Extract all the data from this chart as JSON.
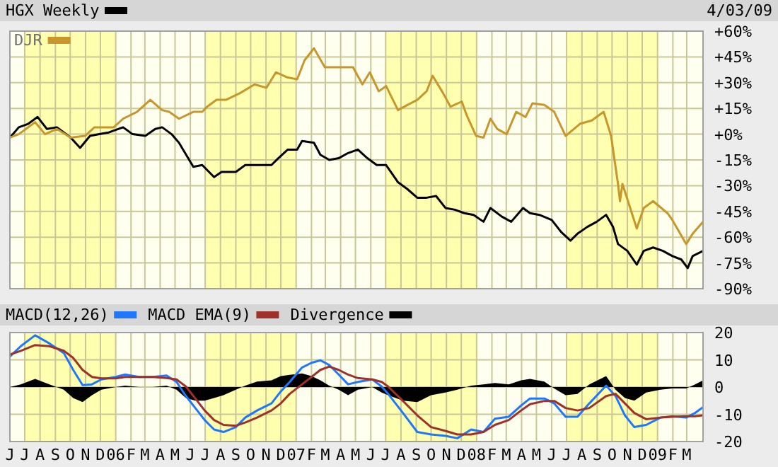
{
  "chart_data": [
    {
      "type": "line",
      "legend": "top left",
      "grid": true,
      "tick_labels": "y",
      "annotations": [
        "4/03/09"
      ],
      "xlim": [
        "2005-06-01",
        "2009-04-03"
      ],
      "xticks": [
        {
          "value": "2005-06-01",
          "label": null
        },
        {
          "value": "2005-07-01",
          "label": null
        },
        {
          "value": "2005-08-01",
          "label": null
        },
        {
          "value": "2005-09-01",
          "label": null
        },
        {
          "value": "2005-10-01",
          "label": null
        },
        {
          "value": "2005-11-01",
          "label": null
        },
        {
          "value": "2005-12-01",
          "label": null
        },
        {
          "value": "2006-01-01",
          "label": null
        },
        {
          "value": "2006-02-01",
          "label": null
        },
        {
          "value": "2006-03-01",
          "label": null
        },
        {
          "value": "2006-04-01",
          "label": null
        },
        {
          "value": "2006-05-01",
          "label": null
        },
        {
          "value": "2006-06-01",
          "label": null
        },
        {
          "value": "2006-07-01",
          "label": null
        },
        {
          "value": "2006-08-01",
          "label": null
        },
        {
          "value": "2006-09-01",
          "label": null
        },
        {
          "value": "2006-10-01",
          "label": null
        },
        {
          "value": "2006-11-01",
          "label": null
        },
        {
          "value": "2006-12-01",
          "label": null
        },
        {
          "value": "2007-01-01",
          "label": null
        },
        {
          "value": "2007-02-01",
          "label": null
        },
        {
          "value": "2007-03-01",
          "label": null
        },
        {
          "value": "2007-04-01",
          "label": null
        },
        {
          "value": "2007-05-01",
          "label": null
        },
        {
          "value": "2007-06-01",
          "label": null
        },
        {
          "value": "2007-07-01",
          "label": null
        },
        {
          "value": "2007-08-01",
          "label": null
        },
        {
          "value": "2007-09-01",
          "label": null
        },
        {
          "value": "2007-10-01",
          "label": null
        },
        {
          "value": "2007-11-01",
          "label": null
        },
        {
          "value": "2007-12-01",
          "label": null
        },
        {
          "value": "2008-01-01",
          "label": null
        },
        {
          "value": "2008-02-01",
          "label": null
        },
        {
          "value": "2008-03-01",
          "label": null
        },
        {
          "value": "2008-04-01",
          "label": null
        },
        {
          "value": "2008-05-01",
          "label": null
        },
        {
          "value": "2008-06-01",
          "label": null
        },
        {
          "value": "2008-07-01",
          "label": null
        },
        {
          "value": "2008-08-01",
          "label": null
        },
        {
          "value": "2008-09-01",
          "label": null
        },
        {
          "value": "2008-10-01",
          "label": null
        },
        {
          "value": "2008-11-01",
          "label": null
        },
        {
          "value": "2008-12-01",
          "label": null
        },
        {
          "value": "2009-01-01",
          "label": null
        },
        {
          "value": "2009-02-01",
          "label": null
        },
        {
          "value": "2009-03-01",
          "label": null
        }
      ],
      "ylim": [
        -90,
        60
      ],
      "yticks": [
        {
          "value": 60,
          "label": "+60%"
        },
        {
          "value": 45,
          "label": "+45%"
        },
        {
          "value": 30,
          "label": "+30%"
        },
        {
          "value": 15,
          "label": "+15%"
        },
        {
          "value": 0,
          "label": "+0%"
        },
        {
          "value": -15,
          "label": "-15%"
        },
        {
          "value": -30,
          "label": "-30%"
        },
        {
          "value": -45,
          "label": "-45%"
        },
        {
          "value": -60,
          "label": "-60%"
        },
        {
          "value": -75,
          "label": "-75%"
        },
        {
          "value": -90,
          "label": "-90%"
        }
      ],
      "bands": [
        {
          "axis": "x",
          "from": "2005-07-01",
          "to": "2006-01-01",
          "color": "#ffffb0"
        },
        {
          "axis": "x",
          "from": "2006-07-01",
          "to": "2007-01-01",
          "color": "#ffffb0"
        },
        {
          "axis": "x",
          "from": "2007-07-01",
          "to": "2008-01-01",
          "color": "#ffffb0"
        },
        {
          "axis": "x",
          "from": "2008-07-01",
          "to": "2009-01-01",
          "color": "#ffffb0"
        }
      ],
      "series": [
        {
          "name": "HGX Weekly",
          "color": "#000000",
          "x": [
            "2005-06-01",
            "2005-06-19",
            "2005-07-08",
            "2005-07-27",
            "2005-08-15",
            "2005-09-04",
            "2005-10-02",
            "2005-10-21",
            "2005-11-10",
            "2005-11-29",
            "2005-12-18",
            "2006-01-16",
            "2006-02-04",
            "2006-03-02",
            "2006-03-22",
            "2006-04-05",
            "2006-04-24",
            "2006-05-09",
            "2006-06-07",
            "2006-06-25",
            "2006-07-19",
            "2006-08-03",
            "2006-09-01",
            "2006-09-20",
            "2006-10-14",
            "2006-11-12",
            "2006-11-26",
            "2006-12-15",
            "2007-01-03",
            "2007-01-13",
            "2007-02-06",
            "2007-02-19",
            "2007-03-09",
            "2007-03-28",
            "2007-04-16",
            "2007-05-06",
            "2007-05-25",
            "2007-06-13",
            "2007-07-02",
            "2007-07-26",
            "2007-08-14",
            "2007-09-03",
            "2007-09-22",
            "2007-10-11",
            "2007-10-30",
            "2007-11-18",
            "2007-12-07",
            "2007-12-26",
            "2008-01-15",
            "2008-01-29",
            "2008-02-21",
            "2008-03-11",
            "2008-04-04",
            "2008-04-18",
            "2008-05-07",
            "2008-06-01",
            "2008-06-20",
            "2008-07-09",
            "2008-07-23",
            "2008-08-12",
            "2008-08-31",
            "2008-09-19",
            "2008-10-03",
            "2008-10-13",
            "2008-11-01",
            "2008-11-20",
            "2008-12-04",
            "2008-12-23",
            "2009-01-12",
            "2009-01-31",
            "2009-02-18",
            "2009-03-03",
            "2009-03-13",
            "2009-04-03"
          ],
          "values": [
            -2,
            4,
            6,
            10,
            3,
            4,
            -2,
            -8,
            -1,
            0,
            1,
            4,
            0,
            -1,
            3,
            4,
            0,
            -5,
            -19,
            -18,
            -25,
            -22,
            -22,
            -18,
            -18,
            -18,
            -14,
            -9,
            -9,
            -4,
            -5,
            -12,
            -15,
            -14,
            -11,
            -9,
            -14,
            -18,
            -18,
            -28,
            -32,
            -37,
            -37,
            -36,
            -43,
            -44,
            -46,
            -47,
            -51,
            -43,
            -48,
            -51,
            -43,
            -46,
            -47,
            -50,
            -57,
            -62,
            -58,
            -54,
            -51,
            -47,
            -54,
            -64,
            -68,
            -76,
            -68,
            -66,
            -68,
            -71,
            -73,
            -78,
            -71,
            -68
          ]
        },
        {
          "name": "DJR",
          "color": "#c8962a",
          "x": [
            "2005-06-01",
            "2005-06-19",
            "2005-07-08",
            "2005-07-22",
            "2005-08-11",
            "2005-09-04",
            "2005-10-02",
            "2005-10-31",
            "2005-11-19",
            "2005-12-28",
            "2006-01-16",
            "2006-02-13",
            "2006-03-12",
            "2006-04-05",
            "2006-04-19",
            "2006-05-09",
            "2006-06-07",
            "2006-06-25",
            "2006-07-05",
            "2006-07-24",
            "2006-08-12",
            "2006-09-10",
            "2006-10-09",
            "2006-11-02",
            "2006-11-21",
            "2006-12-15",
            "2007-01-03",
            "2007-01-18",
            "2007-02-06",
            "2007-02-28",
            "2007-03-28",
            "2007-04-26",
            "2007-05-15",
            "2007-05-30",
            "2007-06-17",
            "2007-07-02",
            "2007-07-26",
            "2007-08-14",
            "2007-09-03",
            "2007-09-22",
            "2007-10-04",
            "2007-10-25",
            "2007-11-09",
            "2007-12-02",
            "2007-12-12",
            "2007-12-31",
            "2008-01-15",
            "2008-01-29",
            "2008-02-12",
            "2008-03-02",
            "2008-03-21",
            "2008-04-09",
            "2008-04-23",
            "2008-05-17",
            "2008-06-06",
            "2008-06-29",
            "2008-07-28",
            "2008-08-21",
            "2008-09-14",
            "2008-09-29",
            "2008-10-13",
            "2008-10-17",
            "2008-10-22",
            "2008-11-20",
            "2008-12-04",
            "2008-12-23",
            "2009-01-21",
            "2009-01-31",
            "2009-02-14",
            "2009-02-28",
            "2009-03-13",
            "2009-04-03"
          ],
          "values": [
            -2,
            0,
            4,
            7,
            0,
            3,
            -2,
            -1,
            4,
            4,
            9,
            13,
            20,
            14,
            13,
            9,
            13,
            13,
            16,
            20,
            20,
            24,
            29,
            27,
            36,
            33,
            32,
            43,
            50,
            39,
            39,
            39,
            29,
            36,
            25,
            28,
            14,
            17,
            20,
            25,
            34,
            24,
            16,
            19,
            11,
            -1,
            -2,
            9,
            3,
            0,
            13,
            10,
            18,
            17,
            13,
            -1,
            6,
            8,
            13,
            -1,
            -29,
            -39,
            -29,
            -55,
            -43,
            -39,
            -46,
            -50,
            -57,
            -64,
            -58,
            -51
          ]
        }
      ]
    },
    {
      "type": "line",
      "legend": "top",
      "grid": true,
      "xlim": [
        "2005-06-01",
        "2009-04-03"
      ],
      "xticks": [
        {
          "value": "2005-06-01",
          "label": "J"
        },
        {
          "value": "2005-07-01",
          "label": "J"
        },
        {
          "value": "2005-08-01",
          "label": "A"
        },
        {
          "value": "2005-09-01",
          "label": "S"
        },
        {
          "value": "2005-10-01",
          "label": "O"
        },
        {
          "value": "2005-11-01",
          "label": "N"
        },
        {
          "value": "2005-12-01",
          "label": "D"
        },
        {
          "value": "2006-01-01",
          "label": "06"
        },
        {
          "value": "2006-02-01",
          "label": "F"
        },
        {
          "value": "2006-03-01",
          "label": "M"
        },
        {
          "value": "2006-04-01",
          "label": "A"
        },
        {
          "value": "2006-05-01",
          "label": "M"
        },
        {
          "value": "2006-06-01",
          "label": "J"
        },
        {
          "value": "2006-07-01",
          "label": "J"
        },
        {
          "value": "2006-08-01",
          "label": "A"
        },
        {
          "value": "2006-09-01",
          "label": "S"
        },
        {
          "value": "2006-10-01",
          "label": "O"
        },
        {
          "value": "2006-11-01",
          "label": "N"
        },
        {
          "value": "2006-12-01",
          "label": "D"
        },
        {
          "value": "2007-01-01",
          "label": "07"
        },
        {
          "value": "2007-02-01",
          "label": "F"
        },
        {
          "value": "2007-03-01",
          "label": "M"
        },
        {
          "value": "2007-04-01",
          "label": "A"
        },
        {
          "value": "2007-05-01",
          "label": "M"
        },
        {
          "value": "2007-06-01",
          "label": "J"
        },
        {
          "value": "2007-07-01",
          "label": "J"
        },
        {
          "value": "2007-08-01",
          "label": "A"
        },
        {
          "value": "2007-09-01",
          "label": "S"
        },
        {
          "value": "2007-10-01",
          "label": "O"
        },
        {
          "value": "2007-11-01",
          "label": "N"
        },
        {
          "value": "2007-12-01",
          "label": "D"
        },
        {
          "value": "2008-01-01",
          "label": "08"
        },
        {
          "value": "2008-02-01",
          "label": "F"
        },
        {
          "value": "2008-03-01",
          "label": "M"
        },
        {
          "value": "2008-04-01",
          "label": "A"
        },
        {
          "value": "2008-05-01",
          "label": "M"
        },
        {
          "value": "2008-06-01",
          "label": "J"
        },
        {
          "value": "2008-07-01",
          "label": "J"
        },
        {
          "value": "2008-08-01",
          "label": "A"
        },
        {
          "value": "2008-09-01",
          "label": "S"
        },
        {
          "value": "2008-10-01",
          "label": "O"
        },
        {
          "value": "2008-11-01",
          "label": "N"
        },
        {
          "value": "2008-12-01",
          "label": "D"
        },
        {
          "value": "2009-01-01",
          "label": "09"
        },
        {
          "value": "2009-02-01",
          "label": "F"
        },
        {
          "value": "2009-03-01",
          "label": "M"
        }
      ],
      "ylim": [
        -20,
        20
      ],
      "yticks": [
        20,
        10,
        0,
        -10,
        -20
      ],
      "bands": [
        {
          "axis": "x",
          "from": "2005-07-01",
          "to": "2006-01-01",
          "color": "#ffffb0"
        },
        {
          "axis": "x",
          "from": "2006-07-01",
          "to": "2007-01-01",
          "color": "#ffffb0"
        },
        {
          "axis": "x",
          "from": "2007-07-01",
          "to": "2008-01-01",
          "color": "#ffffb0"
        },
        {
          "axis": "x",
          "from": "2008-07-01",
          "to": "2009-01-01",
          "color": "#ffffb0"
        }
      ],
      "x": [
        "2005-06-01",
        "2005-06-23",
        "2005-07-22",
        "2005-08-20",
        "2005-09-18",
        "2005-10-07",
        "2005-10-26",
        "2005-11-14",
        "2005-12-03",
        "2006-01-01",
        "2006-01-20",
        "2006-02-17",
        "2006-03-17",
        "2006-04-14",
        "2006-05-04",
        "2006-05-23",
        "2006-06-11",
        "2006-06-30",
        "2006-07-19",
        "2006-08-07",
        "2006-09-01",
        "2006-09-20",
        "2006-10-14",
        "2006-11-12",
        "2006-12-01",
        "2006-12-19",
        "2007-01-13",
        "2007-02-01",
        "2007-02-19",
        "2007-03-09",
        "2007-03-28",
        "2007-04-16",
        "2007-05-06",
        "2007-06-04",
        "2007-06-23",
        "2007-07-06",
        "2007-08-05",
        "2007-09-03",
        "2007-10-01",
        "2007-10-30",
        "2007-11-23",
        "2007-12-21",
        "2008-01-15",
        "2008-02-07",
        "2008-03-06",
        "2008-03-31",
        "2008-04-18",
        "2008-05-17",
        "2008-06-06",
        "2008-06-29",
        "2008-07-23",
        "2008-08-16",
        "2008-09-19",
        "2008-10-08",
        "2008-10-27",
        "2008-11-15",
        "2008-12-09",
        "2009-01-07",
        "2009-01-31",
        "2009-02-28",
        "2009-03-18",
        "2009-04-03"
      ],
      "series": [
        {
          "name": "MACD(12,26)",
          "color": "#1e78ff",
          "values": [
            11.2,
            15,
            19,
            16,
            12.5,
            6.3,
            0.7,
            1,
            2.8,
            3.7,
            4.6,
            3.7,
            3.7,
            4.2,
            1.9,
            -3.3,
            -7.7,
            -12.1,
            -15.6,
            -16.5,
            -14.7,
            -11.2,
            -8.6,
            -6,
            -1.6,
            1.9,
            7.2,
            8.9,
            9.8,
            8.1,
            4.6,
            1,
            1.9,
            2.8,
            0.2,
            -2.5,
            -9.5,
            -16.5,
            -17.4,
            -17.9,
            -18.8,
            -15.6,
            -16.5,
            -11.6,
            -10.9,
            -6.8,
            -4.2,
            -4.2,
            -6,
            -10.9,
            -10.9,
            -6,
            0.5,
            -3.3,
            -10.4,
            -14.7,
            -13.9,
            -11.2,
            -10.7,
            -11.2,
            -9.5,
            -7.4
          ]
        },
        {
          "name": "MACD EMA(9)",
          "color": "#a0302a",
          "values": [
            11.9,
            13.3,
            15.4,
            15,
            13.3,
            10.7,
            6.3,
            3.7,
            3.2,
            3.2,
            3.7,
            3.7,
            3.7,
            3.3,
            2.8,
            0.2,
            -4.2,
            -8.6,
            -12.1,
            -13.9,
            -14.2,
            -13,
            -11.2,
            -8.6,
            -6,
            -2.5,
            1,
            3.7,
            6.3,
            7.5,
            6.3,
            4.6,
            3.3,
            2.8,
            1.9,
            0.2,
            -5.1,
            -10.4,
            -14.7,
            -16.1,
            -17.4,
            -17.4,
            -16.5,
            -13.9,
            -12.1,
            -8.6,
            -6.3,
            -5.1,
            -5.1,
            -7.7,
            -8.6,
            -7.7,
            -3.3,
            -2.5,
            -6,
            -9.5,
            -11.8,
            -11.2,
            -10.9,
            -10.7,
            -10.7,
            -10.4
          ]
        },
        {
          "name": "Divergence",
          "type": "area",
          "color": "#000000",
          "values": [
            0,
            1,
            3,
            1,
            -1,
            -4,
            -5.5,
            -3,
            -1,
            0,
            0.5,
            0,
            0,
            0.5,
            -1,
            -4,
            -5,
            -5,
            -4,
            -3,
            -1,
            0.5,
            2,
            2.5,
            4,
            4.5,
            5,
            4,
            2.5,
            0.5,
            -1,
            -3,
            -1,
            0,
            -2,
            -3,
            -5,
            -5.5,
            -3,
            -2,
            -1,
            0.5,
            1,
            1.5,
            1,
            2.5,
            3,
            2,
            -0.5,
            -3,
            -2.5,
            1,
            4,
            -1,
            -4,
            -5,
            -2,
            -1,
            -0.5,
            -0.5,
            1,
            2.5
          ]
        }
      ]
    }
  ]
}
